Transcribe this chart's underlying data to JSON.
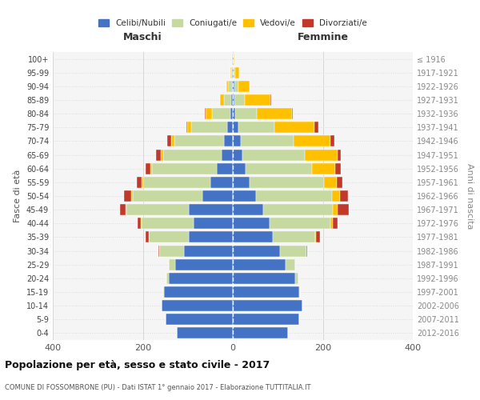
{
  "age_groups": [
    "0-4",
    "5-9",
    "10-14",
    "15-19",
    "20-24",
    "25-29",
    "30-34",
    "35-39",
    "40-44",
    "45-49",
    "50-54",
    "55-59",
    "60-64",
    "65-69",
    "70-74",
    "75-79",
    "80-84",
    "85-89",
    "90-94",
    "95-99",
    "100+"
  ],
  "birth_years": [
    "2012-2016",
    "2007-2011",
    "2002-2006",
    "1997-2001",
    "1992-1996",
    "1987-1991",
    "1982-1986",
    "1977-1981",
    "1972-1976",
    "1967-1971",
    "1962-1966",
    "1957-1961",
    "1952-1956",
    "1947-1951",
    "1942-1946",
    "1937-1941",
    "1932-1936",
    "1927-1931",
    "1922-1926",
    "1917-1921",
    "≤ 1916"
  ],
  "male": {
    "celibi": [
      125,
      150,
      158,
      153,
      143,
      128,
      108,
      98,
      88,
      98,
      68,
      50,
      35,
      25,
      20,
      13,
      5,
      3,
      2,
      1,
      1
    ],
    "coniugati": [
      0,
      0,
      0,
      1,
      5,
      15,
      55,
      88,
      115,
      138,
      155,
      150,
      145,
      130,
      110,
      80,
      42,
      17,
      8,
      3,
      1
    ],
    "vedovi": [
      0,
      0,
      0,
      0,
      0,
      0,
      0,
      0,
      1,
      2,
      3,
      3,
      4,
      5,
      7,
      8,
      14,
      8,
      4,
      1,
      0
    ],
    "divorziati": [
      0,
      0,
      0,
      0,
      0,
      0,
      2,
      8,
      8,
      12,
      15,
      10,
      10,
      10,
      8,
      2,
      1,
      1,
      0,
      0,
      0
    ]
  },
  "female": {
    "nubili": [
      122,
      148,
      155,
      148,
      138,
      118,
      105,
      88,
      82,
      68,
      52,
      38,
      28,
      22,
      17,
      13,
      6,
      4,
      3,
      2,
      1
    ],
    "coniugate": [
      0,
      0,
      0,
      1,
      8,
      20,
      58,
      95,
      135,
      155,
      168,
      165,
      148,
      138,
      118,
      80,
      48,
      22,
      10,
      4,
      1
    ],
    "vedove": [
      0,
      0,
      0,
      0,
      0,
      0,
      0,
      2,
      5,
      10,
      18,
      28,
      52,
      72,
      82,
      88,
      78,
      58,
      24,
      8,
      1
    ],
    "divorziate": [
      0,
      0,
      0,
      0,
      0,
      0,
      2,
      8,
      10,
      25,
      18,
      12,
      12,
      8,
      8,
      10,
      2,
      2,
      1,
      0,
      0
    ]
  },
  "colors": {
    "celibi": "#4472c4",
    "coniugati": "#c5d9a0",
    "vedovi": "#ffc000",
    "divorziati": "#c0392b"
  },
  "title": "Popolazione per età, sesso e stato civile - 2017",
  "subtitle": "COMUNE DI FOSSOMBRONE (PU) - Dati ISTAT 1° gennaio 2017 - Elaborazione TUTTITALIA.IT",
  "xlabel_left": "Maschi",
  "xlabel_right": "Femmine",
  "ylabel_left": "Fasce di età",
  "ylabel_right": "Anni di nascita",
  "xlim": 400,
  "bg_color": "#f5f5f5",
  "plot_bg": "#f5f5f5",
  "grid_color": "#cccccc"
}
